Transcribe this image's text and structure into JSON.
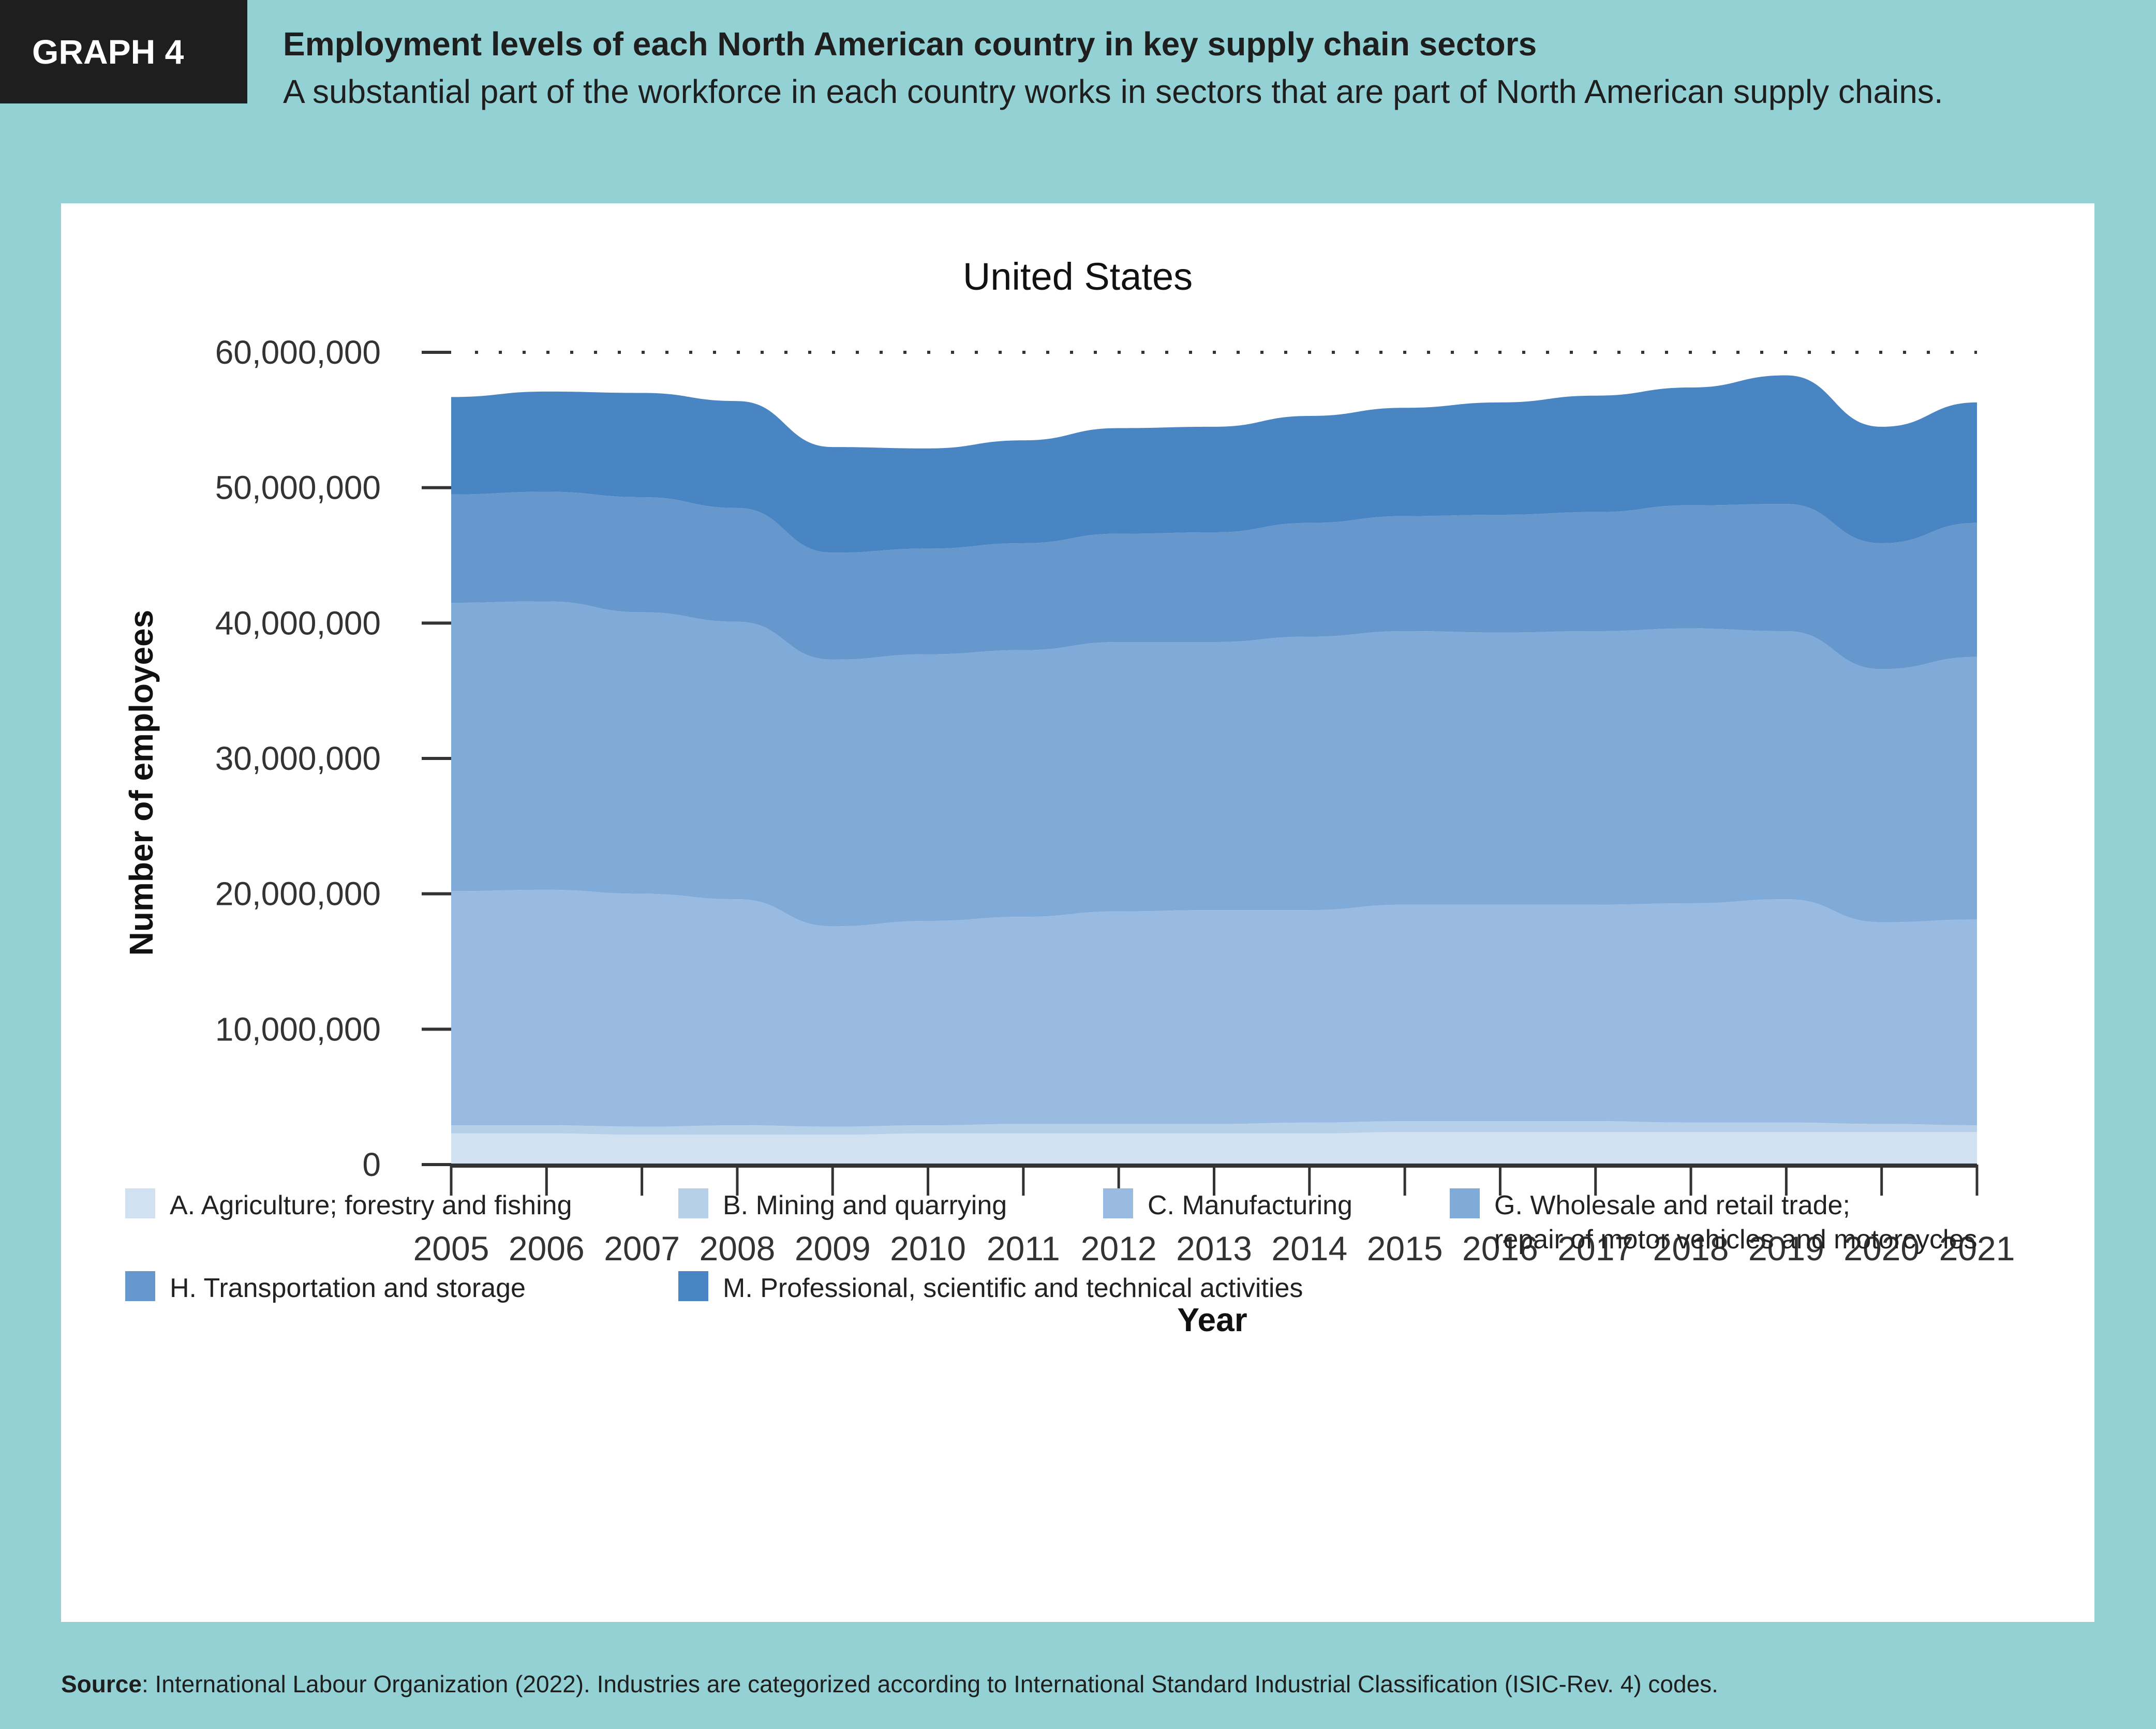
{
  "header": {
    "badge": "GRAPH 4",
    "title": "Employment levels of each North American country in key supply chain sectors",
    "subtitle": "A substantial part of the workforce in each country works in sectors that are part of North American supply chains."
  },
  "source": {
    "label": "Source",
    "text": ": International Labour Organization (2022). Industries are categorized according to International Standard Industrial Classification (ISIC-Rev. 4) codes."
  },
  "chart_data": {
    "type": "area",
    "stacked": true,
    "title": "United States",
    "xlabel": "Year",
    "ylabel": "Number of employees",
    "ylim": [
      0,
      60000000
    ],
    "yticks": [
      0,
      10000000,
      20000000,
      30000000,
      40000000,
      50000000,
      60000000
    ],
    "ytick_labels": [
      "0",
      "10,000,000",
      "20,000,000",
      "30,000,000",
      "40,000,000",
      "50,000,000",
      "60,000,000"
    ],
    "x": [
      "2005",
      "2006",
      "2007",
      "2008",
      "2009",
      "2010",
      "2011",
      "2012",
      "2013",
      "2014",
      "2015",
      "2016",
      "2017",
      "2018",
      "2019",
      "2020",
      "2021"
    ],
    "grid": "dotted line at top tick only",
    "legend_position": "bottom",
    "series": [
      {
        "name": "A. Agriculture; forestry and fishing",
        "color": "#d2e1f2",
        "values": [
          2300000,
          2300000,
          2200000,
          2200000,
          2200000,
          2300000,
          2300000,
          2300000,
          2300000,
          2300000,
          2400000,
          2400000,
          2400000,
          2400000,
          2400000,
          2400000,
          2400000
        ]
      },
      {
        "name": "B. Mining and quarrying",
        "color": "#b6d0ea",
        "values": [
          600000,
          600000,
          600000,
          700000,
          600000,
          600000,
          700000,
          700000,
          700000,
          800000,
          800000,
          800000,
          800000,
          700000,
          700000,
          600000,
          500000
        ]
      },
      {
        "name": "C. Manufacturing",
        "color": "#9abbe1",
        "values": [
          17300000,
          17400000,
          17200000,
          16700000,
          14800000,
          15100000,
          15300000,
          15700000,
          15800000,
          15700000,
          16000000,
          16000000,
          16000000,
          16200000,
          16500000,
          14900000,
          15200000
        ]
      },
      {
        "name": "G. Wholesale and retail trade; repair of motor vehicles and motorcycles",
        "color": "#80aad8",
        "values": [
          21300000,
          21300000,
          20800000,
          20500000,
          19700000,
          19700000,
          19700000,
          19900000,
          19800000,
          20200000,
          20200000,
          20100000,
          20200000,
          20300000,
          19800000,
          18700000,
          19400000
        ]
      },
      {
        "name": "H. Transportation and storage",
        "color": "#6698ce",
        "values": [
          8000000,
          8100000,
          8500000,
          8400000,
          7900000,
          7800000,
          7900000,
          8000000,
          8100000,
          8400000,
          8500000,
          8700000,
          8800000,
          9100000,
          9400000,
          9300000,
          9900000
        ]
      },
      {
        "name": "M. Professional, scientific and technical activities",
        "color": "#4a85c3",
        "values": [
          7200000,
          7400000,
          7700000,
          7900000,
          7800000,
          7400000,
          7600000,
          7800000,
          7800000,
          7900000,
          8000000,
          8300000,
          8600000,
          8700000,
          9500000,
          8600000,
          8900000
        ]
      }
    ]
  }
}
